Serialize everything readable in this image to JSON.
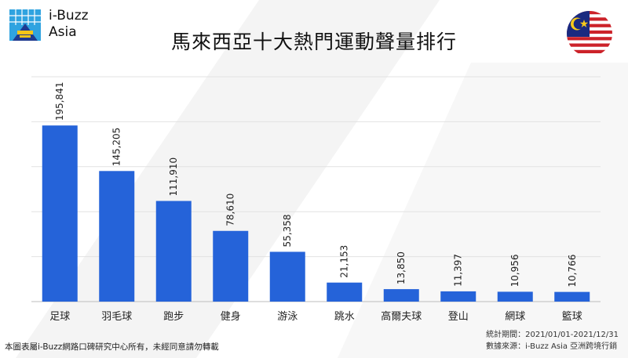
{
  "header": {
    "brand_line1": "i-Buzz",
    "brand_line2": "Asia",
    "title": "馬來西亞十大熱門運動聲量排行"
  },
  "icons": {
    "logo": "i-buzz-logo-icon",
    "flag": "malaysia-flag-icon"
  },
  "colors": {
    "bar": "#2563d9",
    "grid": "#e2e2e2",
    "baseline": "#bdbdbd",
    "flag_red": "#cc2229",
    "flag_blue": "#1a2a80",
    "flag_yellow": "#f7c91b"
  },
  "chart_data": {
    "type": "bar",
    "title": "馬來西亞十大熱門運動聲量排行",
    "xlabel": "",
    "ylabel": "",
    "categories": [
      "足球",
      "羽毛球",
      "跑步",
      "健身",
      "游泳",
      "跳水",
      "高爾夫球",
      "登山",
      "網球",
      "籃球"
    ],
    "values": [
      195841,
      145205,
      111910,
      78610,
      55358,
      21153,
      13850,
      11397,
      10956,
      10766
    ],
    "value_labels": [
      "195,841",
      "145,205",
      "111,910",
      "78,610",
      "55,358",
      "21,153",
      "13,850",
      "11,397",
      "10,956",
      "10,766"
    ],
    "ylim": [
      0,
      250000
    ],
    "grid": true,
    "legend": "none"
  },
  "footer": {
    "copyright": "本圖表屬i-Buzz網路口碑研究中心所有，未經同意請勿轉載",
    "period": "統計期間：2021/01/01-2021/12/31",
    "source": "數據來源：i-Buzz Asia 亞洲跨境行銷"
  }
}
